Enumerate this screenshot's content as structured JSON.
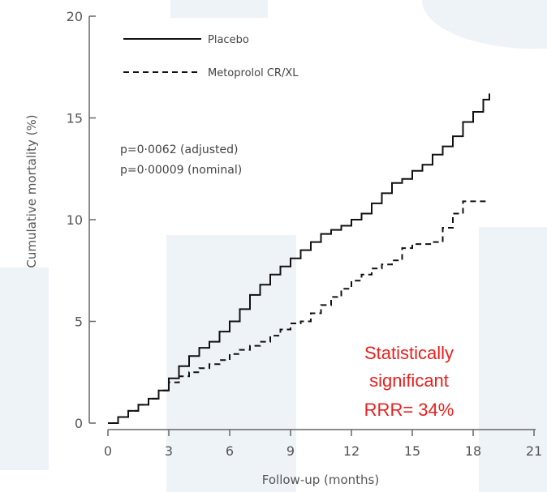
{
  "chart_data": {
    "type": "line",
    "xlabel": "Follow-up (months)",
    "ylabel": "Cumulative mortality (%)",
    "x_ticks": [
      "0",
      "3",
      "6",
      "9",
      "12",
      "15",
      "18",
      "21"
    ],
    "y_ticks": [
      "0",
      "5",
      "10",
      "15",
      "20"
    ],
    "xlim": [
      0,
      21
    ],
    "ylim": [
      0,
      20
    ],
    "grid": false,
    "legend_position": "top-left",
    "series": [
      {
        "name": "Placebo",
        "line_style": "solid",
        "points": [
          [
            0,
            0
          ],
          [
            0.5,
            0.3
          ],
          [
            1,
            0.6
          ],
          [
            1.5,
            0.9
          ],
          [
            2,
            1.2
          ],
          [
            2.5,
            1.6
          ],
          [
            3,
            2.2
          ],
          [
            3.5,
            2.8
          ],
          [
            4,
            3.3
          ],
          [
            4.5,
            3.7
          ],
          [
            5,
            4.0
          ],
          [
            5.5,
            4.5
          ],
          [
            6,
            5.0
          ],
          [
            6.5,
            5.6
          ],
          [
            7,
            6.3
          ],
          [
            7.5,
            6.8
          ],
          [
            8,
            7.3
          ],
          [
            8.5,
            7.7
          ],
          [
            9,
            8.1
          ],
          [
            9.5,
            8.5
          ],
          [
            10,
            8.9
          ],
          [
            10.5,
            9.3
          ],
          [
            11,
            9.5
          ],
          [
            11.5,
            9.7
          ],
          [
            12,
            10.0
          ],
          [
            12.5,
            10.3
          ],
          [
            13,
            10.8
          ],
          [
            13.5,
            11.3
          ],
          [
            14,
            11.8
          ],
          [
            14.5,
            12.0
          ],
          [
            15,
            12.4
          ],
          [
            15.5,
            12.7
          ],
          [
            16,
            13.2
          ],
          [
            16.5,
            13.6
          ],
          [
            17,
            14.1
          ],
          [
            17.5,
            14.8
          ],
          [
            18,
            15.3
          ],
          [
            18.5,
            15.9
          ],
          [
            18.8,
            16.2
          ]
        ]
      },
      {
        "name": "Metoprolol CR/XL",
        "line_style": "dashed",
        "points": [
          [
            0,
            0
          ],
          [
            0.5,
            0.3
          ],
          [
            1,
            0.6
          ],
          [
            1.5,
            0.9
          ],
          [
            2,
            1.2
          ],
          [
            2.5,
            1.6
          ],
          [
            3,
            2.0
          ],
          [
            3.5,
            2.3
          ],
          [
            4,
            2.5
          ],
          [
            4.5,
            2.7
          ],
          [
            5,
            2.9
          ],
          [
            5.5,
            3.1
          ],
          [
            6,
            3.4
          ],
          [
            6.5,
            3.6
          ],
          [
            7,
            3.8
          ],
          [
            7.5,
            4.0
          ],
          [
            8,
            4.3
          ],
          [
            8.5,
            4.6
          ],
          [
            9,
            4.9
          ],
          [
            9.5,
            5.0
          ],
          [
            10,
            5.4
          ],
          [
            10.5,
            5.8
          ],
          [
            11,
            6.2
          ],
          [
            11.5,
            6.6
          ],
          [
            12,
            7.0
          ],
          [
            12.5,
            7.3
          ],
          [
            13,
            7.6
          ],
          [
            13.5,
            7.8
          ],
          [
            14,
            8.0
          ],
          [
            14.5,
            8.6
          ],
          [
            15,
            8.8
          ],
          [
            15.5,
            8.8
          ],
          [
            16,
            8.9
          ],
          [
            16.5,
            9.6
          ],
          [
            17,
            10.3
          ],
          [
            17.5,
            10.9
          ],
          [
            18,
            10.9
          ],
          [
            18.8,
            10.9
          ]
        ]
      }
    ],
    "annotations": [
      "p=0·0062 (adjusted)",
      "p=0·00009 (nominal)"
    ],
    "callout": {
      "lines": [
        "Statistically",
        "significant",
        "RRR= 34%"
      ],
      "color": "#e8201e"
    }
  },
  "colors": {
    "line": "#111111",
    "axis": "#666666",
    "watermark": "#eef3f8"
  }
}
